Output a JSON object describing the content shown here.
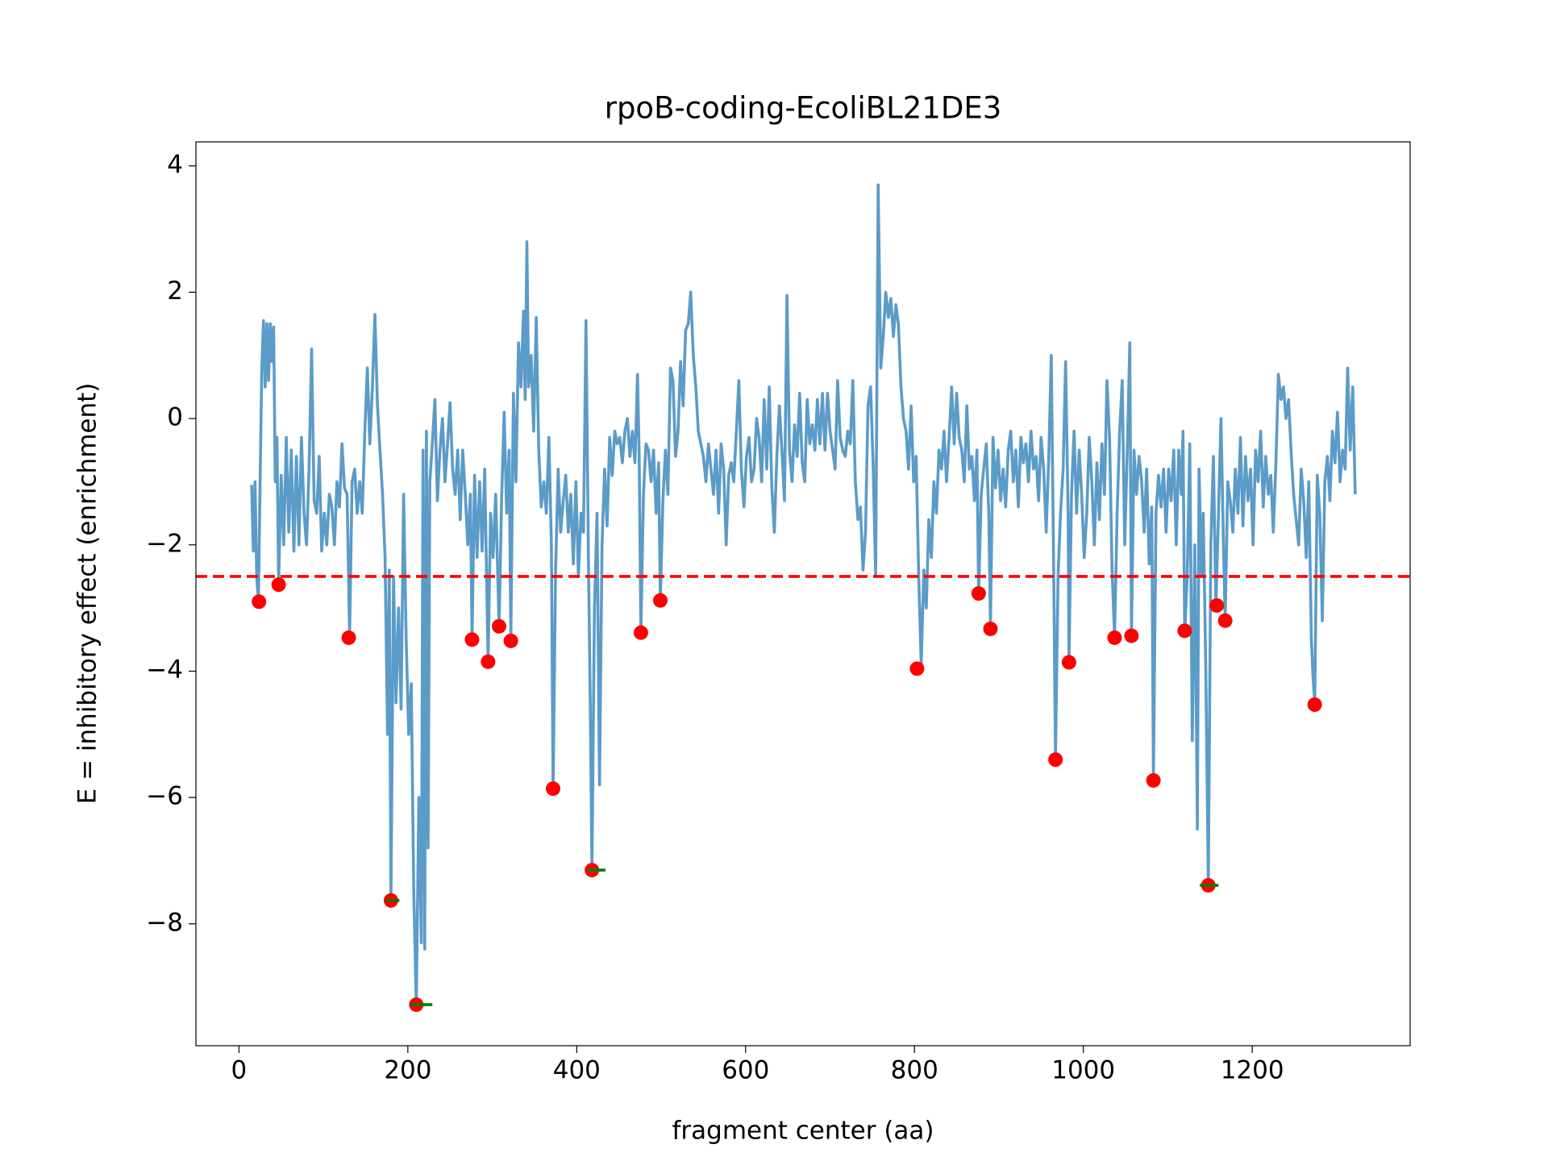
{
  "chart_data": {
    "type": "line",
    "title": "rpoB-coding-EcoliBL21DE3",
    "xlabel": "fragment center (aa)",
    "ylabel": "E = inhibitory effect (enrichment)",
    "xlim": [
      -51,
      1387
    ],
    "ylim": [
      -9.93,
      4.38
    ],
    "xticks": [
      0,
      200,
      400,
      600,
      800,
      1000,
      1200
    ],
    "yticks": [
      {
        "value": -8,
        "label": "−8"
      },
      {
        "value": -6,
        "label": "−6"
      },
      {
        "value": -4,
        "label": "−4"
      },
      {
        "value": -2,
        "label": "−2"
      },
      0,
      2,
      4
    ],
    "threshold": {
      "value": -2.5,
      "color": "#ff0000"
    },
    "series": [
      {
        "color": "#5b9bc8",
        "x": [
          15,
          17,
          19,
          21,
          23,
          25,
          27,
          29,
          31,
          33,
          35,
          37,
          39,
          41,
          43,
          45,
          47,
          50,
          53,
          56,
          59,
          62,
          65,
          68,
          71,
          74,
          77,
          80,
          83,
          86,
          89,
          92,
          95,
          98,
          101,
          104,
          107,
          110,
          113,
          116,
          119,
          122,
          125,
          128,
          131,
          134,
          137,
          140,
          143,
          146,
          149,
          152,
          155,
          158,
          161,
          164,
          167,
          170,
          173,
          176,
          178,
          180,
          183,
          186,
          189,
          192,
          195,
          198,
          201,
          204,
          207,
          210,
          213,
          216,
          218,
          220,
          222,
          224,
          226,
          229,
          232,
          235,
          238,
          241,
          244,
          247,
          250,
          253,
          256,
          259,
          262,
          265,
          268,
          271,
          274,
          276,
          279,
          282,
          285,
          288,
          291,
          295,
          298,
          301,
          304,
          308,
          311,
          314,
          317,
          320,
          322,
          325,
          328,
          331,
          334,
          337,
          339,
          341,
          343,
          346,
          349,
          352,
          355,
          358,
          361,
          364,
          367,
          370,
          372,
          375,
          378,
          381,
          384,
          387,
          390,
          393,
          396,
          399,
          402,
          405,
          408,
          411,
          414,
          416,
          418,
          421,
          424,
          427,
          430,
          433,
          436,
          439,
          442,
          445,
          448,
          451,
          454,
          457,
          460,
          463,
          466,
          469,
          472,
          474,
          476,
          479,
          482,
          485,
          488,
          491,
          494,
          497,
          499,
          502,
          505,
          508,
          511,
          514,
          517,
          520,
          523,
          526,
          529,
          532,
          535,
          538,
          541,
          544,
          547,
          550,
          553,
          556,
          559,
          562,
          565,
          568,
          571,
          574,
          577,
          580,
          583,
          586,
          589,
          592,
          595,
          598,
          601,
          604,
          607,
          610,
          613,
          616,
          619,
          622,
          625,
          628,
          631,
          634,
          637,
          640,
          643,
          646,
          649,
          652,
          655,
          658,
          661,
          664,
          667,
          670,
          673,
          676,
          679,
          682,
          685,
          688,
          691,
          694,
          697,
          700,
          703,
          706,
          709,
          712,
          715,
          718,
          721,
          724,
          727,
          730,
          733,
          736,
          739,
          742,
          745,
          748,
          751,
          754,
          757,
          760,
          763,
          766,
          769,
          772,
          775,
          778,
          781,
          784,
          787,
          790,
          793,
          796,
          799,
          802,
          805,
          808,
          811,
          814,
          817,
          820,
          823,
          826,
          829,
          832,
          835,
          838,
          841,
          844,
          847,
          850,
          853,
          856,
          859,
          862,
          865,
          868,
          871,
          874,
          876,
          879,
          882,
          885,
          888,
          890,
          893,
          896,
          899,
          902,
          905,
          908,
          911,
          914,
          917,
          920,
          923,
          926,
          929,
          932,
          935,
          938,
          941,
          944,
          947,
          950,
          953,
          956,
          959,
          962,
          965,
          967,
          970,
          973,
          976,
          979,
          982,
          983,
          986,
          989,
          992,
          995,
          998,
          1001,
          1004,
          1007,
          1010,
          1013,
          1016,
          1019,
          1022,
          1025,
          1028,
          1031,
          1034,
          1037,
          1040,
          1043,
          1046,
          1049,
          1052,
          1055,
          1057,
          1060,
          1063,
          1066,
          1069,
          1072,
          1075,
          1078,
          1081,
          1083,
          1086,
          1089,
          1092,
          1095,
          1098,
          1101,
          1104,
          1107,
          1110,
          1113,
          1116,
          1118,
          1120,
          1123,
          1126,
          1129,
          1132,
          1135,
          1137,
          1140,
          1142,
          1145,
          1148,
          1151,
          1154,
          1157,
          1160,
          1163,
          1166,
          1168,
          1171,
          1174,
          1177,
          1180,
          1183,
          1186,
          1189,
          1192,
          1195,
          1198,
          1201,
          1204,
          1207,
          1210,
          1213,
          1216,
          1219,
          1222,
          1225,
          1228,
          1231,
          1234,
          1237,
          1240,
          1243,
          1246,
          1249,
          1252,
          1255,
          1258,
          1261,
          1264,
          1267,
          1270,
          1272,
          1274,
          1277,
          1280,
          1283,
          1286,
          1289,
          1292,
          1295,
          1298,
          1301,
          1304,
          1307,
          1310,
          1313,
          1316,
          1319,
          1322
        ],
        "values": [
          -1.05,
          -2.1,
          -1.0,
          -2.5,
          -2.9,
          -1.0,
          0.8,
          1.55,
          0.5,
          1.5,
          0.6,
          1.5,
          0.9,
          1.45,
          -1.0,
          -0.3,
          -2.6,
          -0.9,
          -2.0,
          -0.3,
          -1.8,
          -0.5,
          -2.1,
          -0.6,
          -2.0,
          -0.3,
          -1.5,
          -2.0,
          -0.8,
          1.1,
          -1.3,
          -1.5,
          -0.6,
          -2.1,
          -1.5,
          -2.0,
          -1.2,
          -1.4,
          -2.0,
          -1.0,
          -1.4,
          -0.4,
          -1.1,
          -1.2,
          -3.45,
          -1.0,
          -0.8,
          -1.5,
          -1.0,
          -1.5,
          -0.2,
          0.8,
          -0.4,
          0.5,
          1.65,
          0.2,
          -0.5,
          -1.2,
          -2.2,
          -5.0,
          -2.4,
          -7.6,
          -2.5,
          -4.5,
          -3.0,
          -4.6,
          -1.2,
          -3.5,
          -5.0,
          -4.2,
          -7.5,
          -9.3,
          -6.0,
          -8.3,
          -0.5,
          -8.4,
          -0.2,
          -6.8,
          -1.0,
          -0.4,
          0.3,
          -1.3,
          -0.5,
          0.0,
          -1.0,
          -0.4,
          0.25,
          -0.8,
          -1.2,
          -0.5,
          -1.6,
          -0.5,
          -1.2,
          -2.0,
          -1.2,
          -3.5,
          -0.9,
          -2.2,
          -1.0,
          -2.1,
          -0.8,
          -3.85,
          -1.5,
          -2.2,
          -1.2,
          -3.3,
          -1.3,
          0.1,
          -1.5,
          -0.5,
          -3.5,
          0.4,
          -1.0,
          1.2,
          0.5,
          1.7,
          0.3,
          2.8,
          0.5,
          1.0,
          -0.2,
          1.6,
          -0.5,
          -1.4,
          -1.0,
          -1.5,
          -0.3,
          -2.0,
          -5.9,
          -2.4,
          -0.8,
          -1.8,
          -1.3,
          -0.9,
          -1.8,
          -1.2,
          -2.3,
          -1.0,
          -2.5,
          -1.5,
          -1.8,
          1.55,
          -2.4,
          -4.5,
          -7.15,
          -3.0,
          -1.5,
          -5.8,
          -2.0,
          -0.8,
          -1.7,
          -0.3,
          -0.9,
          -0.2,
          -0.4,
          -0.3,
          -0.7,
          -0.2,
          0.0,
          -0.6,
          -0.2,
          -0.7,
          0.7,
          -0.6,
          -3.4,
          -1.2,
          -0.4,
          -0.5,
          -1.0,
          -0.5,
          -1.5,
          -0.7,
          -2.9,
          -1.3,
          -0.5,
          -1.2,
          0.8,
          0.6,
          -0.6,
          -0.2,
          0.9,
          0.2,
          1.4,
          1.5,
          2.0,
          1.0,
          0.5,
          -0.2,
          -0.4,
          -0.6,
          -1.0,
          -0.4,
          -0.8,
          -1.2,
          -0.5,
          -1.5,
          -0.4,
          -0.8,
          -2.0,
          -0.9,
          -0.7,
          -1.0,
          -0.2,
          0.6,
          -0.8,
          -1.4,
          -0.6,
          -0.3,
          -1.0,
          -0.8,
          0.0,
          -0.3,
          -1.0,
          0.3,
          -0.8,
          0.5,
          -1.1,
          -1.8,
          -0.6,
          0.2,
          -0.5,
          -1.3,
          1.95,
          -0.5,
          -1.0,
          -0.1,
          -0.6,
          0.4,
          -0.7,
          -1.0,
          0.3,
          -0.4,
          -0.1,
          -0.5,
          0.3,
          -0.4,
          0.4,
          -0.5,
          0.4,
          -0.2,
          -0.5,
          -0.8,
          0.6,
          -0.3,
          -0.5,
          -0.6,
          -0.2,
          -0.4,
          0.6,
          -1.0,
          -1.6,
          -1.4,
          -2.4,
          -1.8,
          0.2,
          0.5,
          -0.7,
          -2.5,
          3.7,
          0.8,
          1.3,
          2.0,
          1.6,
          1.9,
          1.3,
          1.8,
          1.5,
          0.5,
          0.0,
          -0.2,
          -0.8,
          0.2,
          -1.0,
          -0.6,
          -2.5,
          -3.9,
          -2.4,
          -3.0,
          -1.6,
          -2.2,
          -1.0,
          -1.5,
          -0.5,
          -0.8,
          -0.2,
          -1.0,
          -0.3,
          0.5,
          -0.4,
          0.4,
          -0.3,
          -0.5,
          -1.0,
          0.2,
          -0.8,
          -0.6,
          -1.3,
          -0.5,
          -2.8,
          -1.2,
          -0.8,
          -0.4,
          -1.5,
          -3.3,
          -0.3,
          -1.1,
          -0.5,
          -1.3,
          -0.8,
          -1.4,
          -0.5,
          -0.2,
          -1.0,
          -0.5,
          -1.4,
          -0.3,
          -0.7,
          -0.4,
          -1.0,
          -0.2,
          -0.8,
          -0.6,
          -1.3,
          -0.3,
          -0.8,
          -1.8,
          -0.6,
          1.0,
          -2.5,
          -5.4,
          -2.5,
          -1.5,
          -0.8,
          0.9,
          -1.5,
          -3.86,
          -1.2,
          -0.2,
          -1.5,
          -0.5,
          -1.2,
          -2.2,
          -1.5,
          -0.3,
          -1.0,
          -2.0,
          -0.7,
          -1.6,
          -0.4,
          -1.2,
          0.6,
          -0.3,
          -2.4,
          -3.45,
          -1.5,
          -0.2,
          0.6,
          -2.0,
          -0.5,
          1.2,
          -3.44,
          -0.5,
          -1.2,
          -0.6,
          -1.0,
          -1.8,
          -0.8,
          -2.3,
          -1.4,
          -5.7,
          -1.5,
          -0.9,
          -1.4,
          -0.8,
          -1.8,
          -0.8,
          -1.3,
          -0.5,
          -2.0,
          -0.5,
          -1.2,
          -0.2,
          -3.4,
          -2.5,
          -0.4,
          -5.1,
          -2.0,
          -6.5,
          -0.8,
          -2.5,
          -1.5,
          -4.0,
          -7.4,
          -2.0,
          -0.6,
          -3.0,
          -1.5,
          0.0,
          -2.0,
          -3.2,
          -1.0,
          -1.3,
          -1.8,
          -0.8,
          -1.5,
          -0.3,
          -1.7,
          -0.6,
          -1.3,
          -0.8,
          -2.0,
          -0.5,
          -1.0,
          -0.2,
          -1.4,
          -0.6,
          -1.2,
          -0.9,
          -1.8,
          -0.7,
          0.7,
          0.3,
          0.5,
          0.0,
          0.3,
          -0.5,
          -1.2,
          -1.6,
          -2.0,
          -0.8,
          -1.3,
          -2.2,
          -1.0,
          -3.5,
          -4.1,
          -4.5,
          -0.9,
          -1.5,
          -3.2,
          -1.0,
          -0.6,
          -1.3,
          -0.2,
          -0.7,
          0.1,
          -1.0,
          -0.5,
          -0.8,
          0.8,
          -0.5,
          0.5,
          -1.2
        ]
      }
    ],
    "points": {
      "color": "#ff0000",
      "x": [
        23.7,
        47,
        130,
        180,
        210,
        276,
        295,
        308,
        322,
        372,
        418,
        476,
        499,
        803,
        876,
        890,
        967,
        983,
        1037,
        1057,
        1083,
        1120,
        1148,
        1158,
        1168,
        1274
      ],
      "values": [
        -2.9,
        -2.63,
        -3.47,
        -7.63,
        -9.28,
        -3.5,
        -3.85,
        -3.29,
        -3.52,
        -5.86,
        -7.15,
        -3.39,
        -2.88,
        -3.96,
        -2.77,
        -3.33,
        -5.4,
        -3.86,
        -3.47,
        -3.44,
        -5.73,
        -3.36,
        -7.39,
        -2.96,
        -3.2,
        -4.53
      ]
    },
    "hlines": {
      "color": "#008000",
      "items": [
        {
          "xmin": 174,
          "xmax": 190,
          "y": -7.63
        },
        {
          "xmin": 203,
          "xmax": 229,
          "y": -9.28
        },
        {
          "xmin": 413,
          "xmax": 434,
          "y": -7.15
        },
        {
          "xmin": 1138,
          "xmax": 1160,
          "y": -7.39
        }
      ]
    }
  }
}
